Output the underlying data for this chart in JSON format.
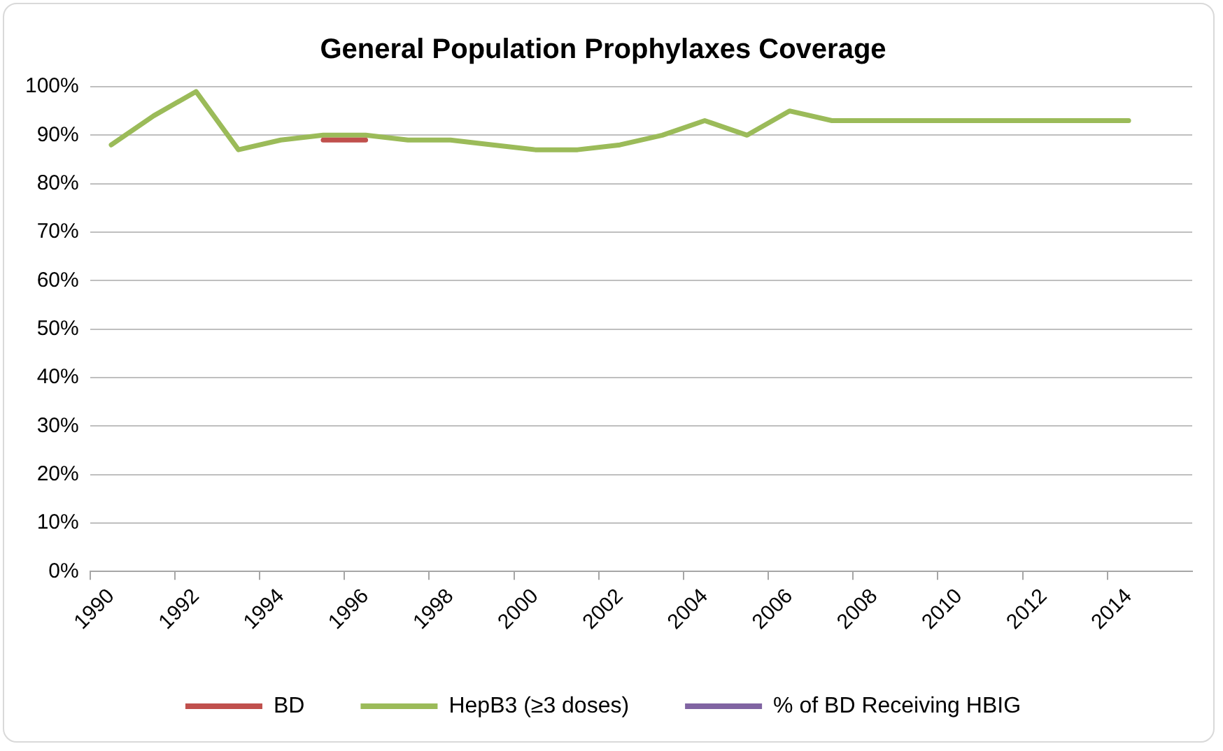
{
  "chart_data": {
    "type": "line",
    "title": "General Population Prophylaxes Coverage",
    "categories": [
      "1990",
      null,
      "1992",
      null,
      "1994",
      null,
      "1996",
      null,
      "1998",
      null,
      "2000",
      null,
      "2002",
      null,
      "2004",
      null,
      "2006",
      null,
      "2008",
      null,
      "2010",
      null,
      "2012",
      null,
      "2014",
      null
    ],
    "series": [
      {
        "name": "BD",
        "color": "#c0504d",
        "values": [
          null,
          null,
          null,
          null,
          null,
          89,
          89,
          null,
          null,
          null,
          null,
          null,
          null,
          null,
          null,
          null,
          null,
          null,
          null,
          null,
          null,
          null,
          null,
          null,
          null,
          null
        ]
      },
      {
        "name": "HepB3 (≥3 doses)",
        "color": "#9bbb59",
        "values": [
          88,
          94,
          99,
          87,
          89,
          90,
          90,
          89,
          89,
          88,
          87,
          87,
          88,
          90,
          93,
          90,
          95,
          93,
          93,
          93,
          93,
          93,
          93,
          93,
          93,
          null
        ]
      },
      {
        "name": "% of BD Receiving HBIG",
        "color": "#8064a2",
        "values": [
          null,
          null,
          null,
          null,
          null,
          null,
          null,
          null,
          null,
          null,
          null,
          null,
          null,
          null,
          null,
          null,
          null,
          null,
          null,
          null,
          null,
          null,
          null,
          null,
          null,
          null
        ]
      }
    ],
    "ylim": [
      0,
      100
    ],
    "yticks": [
      {
        "value": 0,
        "label": "0%"
      },
      {
        "value": 10,
        "label": "10%"
      },
      {
        "value": 20,
        "label": "20%"
      },
      {
        "value": 30,
        "label": "30%"
      },
      {
        "value": 40,
        "label": "40%"
      },
      {
        "value": 50,
        "label": "50%"
      },
      {
        "value": 60,
        "label": "60%"
      },
      {
        "value": 70,
        "label": "70%"
      },
      {
        "value": 80,
        "label": "80%"
      },
      {
        "value": 90,
        "label": "90%"
      },
      {
        "value": 100,
        "label": "100%"
      }
    ],
    "grid": "y",
    "legend": "bottom",
    "marker": "none",
    "line_style": "solid"
  }
}
